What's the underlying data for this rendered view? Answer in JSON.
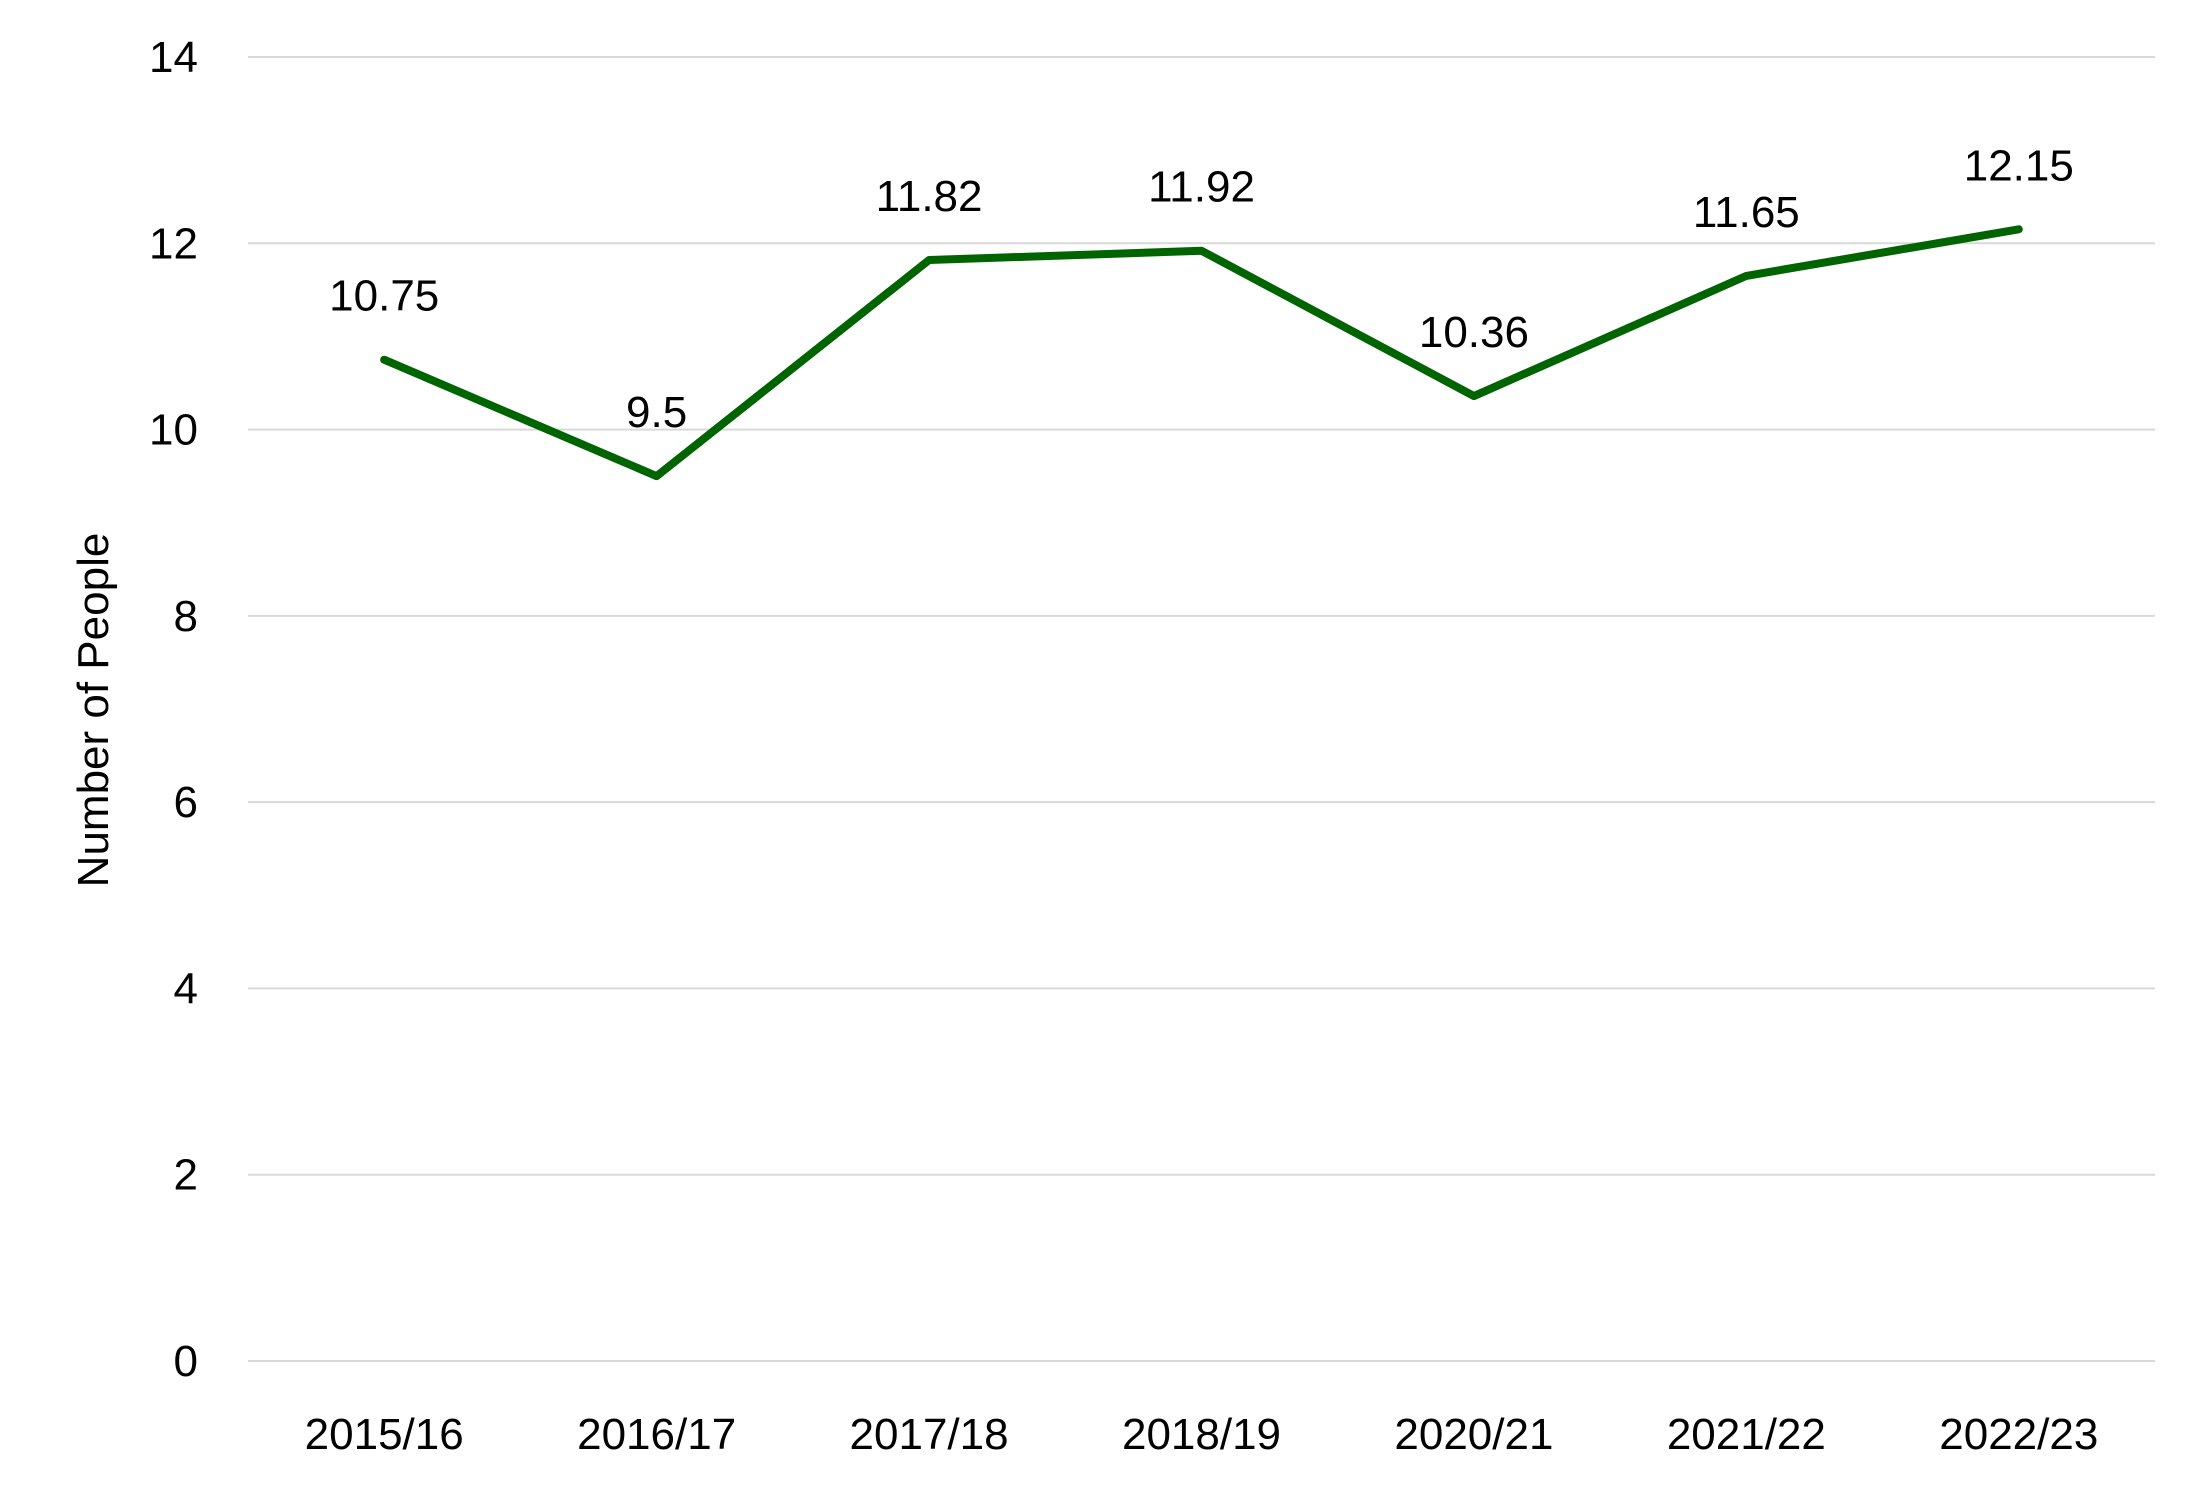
{
  "chart_data": {
    "type": "line",
    "title": "",
    "xlabel": "",
    "ylabel": "Number of People",
    "categories": [
      "2015/16",
      "2016/17",
      "2017/18",
      "2018/19",
      "2020/21",
      "2021/22",
      "2022/23"
    ],
    "series": [
      {
        "values": [
          10.75,
          9.5,
          11.82,
          11.92,
          10.36,
          11.65,
          12.15
        ],
        "color": "#006400"
      }
    ],
    "data_labels": [
      "10.75",
      "9.5",
      "11.82",
      "11.92",
      "10.36",
      "11.65",
      "12.15"
    ],
    "yticks": [
      "0",
      "2",
      "4",
      "6",
      "8",
      "10",
      "12",
      "14"
    ],
    "ylim": [
      0,
      14
    ],
    "grid": true,
    "grid_color": "#d9d9d9",
    "legend": "none"
  }
}
